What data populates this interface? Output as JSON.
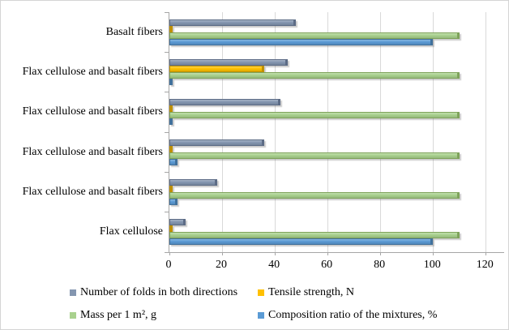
{
  "chart_data": {
    "type": "bar",
    "orientation": "horizontal",
    "title": "",
    "xlabel": "",
    "ylabel": "",
    "categories": [
      "Basalt fibers",
      "Flax cellulose and basalt fibers",
      "Flax cellulose and basalt fibers",
      "Flax cellulose and basalt fibers",
      "Flax cellulose and basalt fibers",
      "Flax cellulose"
    ],
    "series": [
      {
        "name": "Number of folds in both directions",
        "color": "#8496B0",
        "edge": "#5D6C86",
        "values": [
          48,
          45,
          42,
          36,
          18,
          6
        ]
      },
      {
        "name": "Tensile strength, N",
        "color": "#FFC000",
        "edge": "#BF9000",
        "values": [
          1,
          36,
          1,
          1,
          1,
          1
        ]
      },
      {
        "name": "Mass per 1 m², g",
        "color": "#A9D18E",
        "edge": "#7FA35B",
        "values": [
          110,
          110,
          110,
          110,
          110,
          110
        ]
      },
      {
        "name": "Composition ratio of the mixtures, %",
        "color": "#5B9BD5",
        "edge": "#41719C",
        "values": [
          100,
          1,
          1,
          3,
          3,
          100
        ]
      }
    ],
    "xticks": [
      0,
      20,
      40,
      60,
      80,
      100,
      120
    ],
    "xlim": [
      0,
      120
    ],
    "grid": true,
    "legend_position": "bottom",
    "gridline_color": "#D9D9D9",
    "axis_color": "#A6A6A6"
  }
}
